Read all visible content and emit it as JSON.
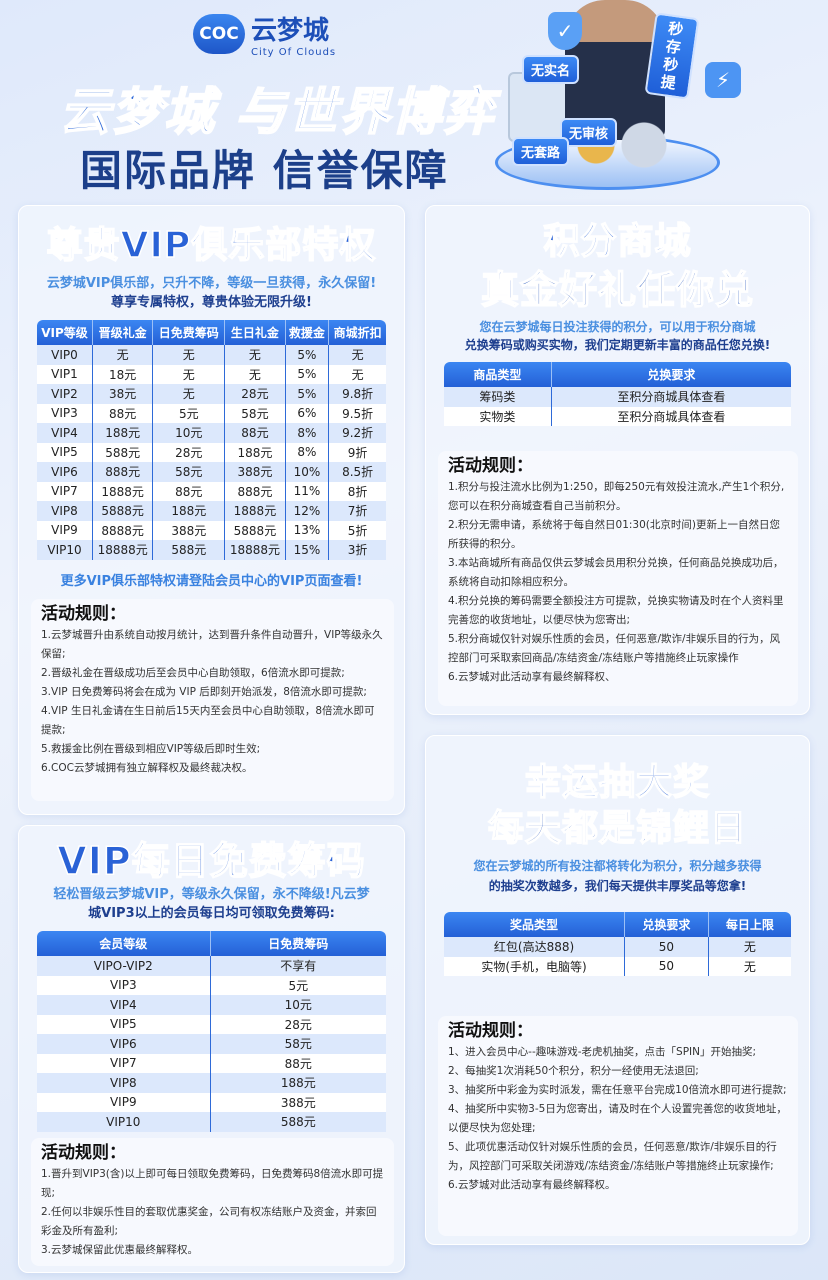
{
  "header": {
    "logo_mark": "COC",
    "logo_name": "云梦城",
    "logo_sub": "City Of Clouds",
    "hero_line1": "云梦城 与世界博弈",
    "hero_line2": "国际品牌 信誉保障",
    "badges": [
      "无实名",
      "无审核",
      "无套路",
      "秒存秒提"
    ]
  },
  "vip_club": {
    "title": "尊贵VIP俱乐部特权",
    "subtitle_1": "云梦城VIP俱乐部，只升不降，等级一旦获得，永久保留!",
    "subtitle_2": "尊享专属特权，尊贵体验无限升级!",
    "columns": [
      "VIP等级",
      "晋级礼金",
      "日免费筹码",
      "生日礼金",
      "救援金",
      "商城折扣"
    ],
    "rows": [
      [
        "VIP0",
        "无",
        "无",
        "无",
        "5%",
        "无"
      ],
      [
        "VIP1",
        "18元",
        "无",
        "无",
        "5%",
        "无"
      ],
      [
        "VIP2",
        "38元",
        "无",
        "28元",
        "5%",
        "9.8折"
      ],
      [
        "VIP3",
        "88元",
        "5元",
        "58元",
        "6%",
        "9.5折"
      ],
      [
        "VIP4",
        "188元",
        "10元",
        "88元",
        "8%",
        "9.2折"
      ],
      [
        "VIP5",
        "588元",
        "28元",
        "188元",
        "8%",
        "9折"
      ],
      [
        "VIP6",
        "888元",
        "58元",
        "388元",
        "10%",
        "8.5折"
      ],
      [
        "VIP7",
        "1888元",
        "88元",
        "888元",
        "11%",
        "8折"
      ],
      [
        "VIP8",
        "5888元",
        "188元",
        "1888元",
        "12%",
        "7折"
      ],
      [
        "VIP9",
        "8888元",
        "388元",
        "5888元",
        "13%",
        "5折"
      ],
      [
        "VIP10",
        "18888元",
        "588元",
        "18888元",
        "15%",
        "3折"
      ]
    ],
    "footnote": "更多VIP俱乐部特权请登陆会员中心的VIP页面查看!",
    "rules_title": "活动规则：",
    "rules": [
      "1.云梦城晋升由系统自动按月统计，达到晋升条件自动晋升，VIP等级永久保留;",
      "2.晋级礼金在晋级成功后至会员中心自助领取，6倍流水即可提款;",
      "3.VIP 日免费筹码将会在成为 VIP 后即刻开始派发，8倍流水即可提款;",
      "4.VIP 生日礼金请在生日前后15天内至会员中心自助领取，8倍流水即可提款;",
      "5.救援金比例在晋级到相应VIP等级后即时生效;",
      "6.COC云梦城拥有独立解释权及最终裁决权。"
    ]
  },
  "daily_chips": {
    "title": "VIP每日免费筹码",
    "subtitle_1": "轻松晋级云梦城VIP，等级永久保留，永不降级!凡云梦",
    "subtitle_2": "城VIP3以上的会员每日均可领取免费筹码:",
    "columns": [
      "会员等级",
      "日免费筹码"
    ],
    "rows": [
      [
        "VIPO-VIP2",
        "不享有"
      ],
      [
        "VIP3",
        "5元"
      ],
      [
        "VIP4",
        "10元"
      ],
      [
        "VIP5",
        "28元"
      ],
      [
        "VIP6",
        "58元"
      ],
      [
        "VIP7",
        "88元"
      ],
      [
        "VIP8",
        "188元"
      ],
      [
        "VIP9",
        "388元"
      ],
      [
        "VIP10",
        "588元"
      ]
    ],
    "rules_title": "活动规则：",
    "rules": [
      "1.晋升到VIP3(含)以上即可每日领取免费筹码，日免费筹码8倍流水即可提现;",
      "2.任何以非娱乐性目的套取优惠奖金，公司有权冻结账户及资金，并索回彩金及所有盈利;",
      "3.云梦城保留此优惠最终解释权。"
    ]
  },
  "points_mall": {
    "title_1": "积分商城",
    "title_2": "真金好礼任你兑",
    "subtitle_1": "您在云梦城每日投注获得的积分，可以用于积分商城",
    "subtitle_2": "兑换筹码或购买实物，我们定期更新丰富的商品任您兑换!",
    "columns": [
      "商品类型",
      "兑换要求"
    ],
    "rows": [
      [
        "筹码类",
        "至积分商城具体查看"
      ],
      [
        "实物类",
        "至积分商城具体查看"
      ]
    ],
    "rules_title": "活动规则：",
    "rules": [
      "1.积分与投注流水比例为1:250，即每250元有效投注流水,产生1个积分,您可以在积分商城查看自己当前积分。",
      "2.积分无需申请，系统将于每自然日01:30(北京时间)更新上一自然日您所获得的积分。",
      "3.本站商城所有商品仅供云梦城会员用积分兑换，任何商品兑换成功后，系统将自动扣除相应积分。",
      "4.积分兑换的筹码需要全额投注方可提款，兑换实物请及时在个人资料里完善您的收货地址，以便尽快为您寄出;",
      "5.积分商城仅针对娱乐性质的会员，任何恶意/欺诈/非娱乐目的行为，风控部门可采取索回商品/冻结资金/冻结账户等措施终止玩家操作",
      "6.云梦城对此活动享有最终解释权、"
    ]
  },
  "lucky_draw": {
    "title_1": "幸运抽大奖",
    "title_2": "每天都是锦鲤日",
    "subtitle_1": "您在云梦城的所有投注都将转化为积分，积分越多获得",
    "subtitle_2": "的抽奖次数越多，我们每天提供丰厚奖品等您拿!",
    "columns": [
      "奖品类型",
      "兑换要求",
      "每日上限"
    ],
    "rows": [
      [
        "红包(高达888)",
        "50",
        "无"
      ],
      [
        "实物(手机，电脑等)",
        "50",
        "无"
      ]
    ],
    "rules_title": "活动规则：",
    "rules": [
      "1、进入会员中心--趣味游戏-老虎机抽奖，点击「SPIN」开始抽奖;",
      "2、每抽奖1次消耗50个积分，积分一经使用无法退回;",
      "3、抽奖所中彩金为实时派发，需在任意平台完成10倍流水即可进行提款;",
      "4、抽奖所中实物3-5日为您寄出，请及时在个人设置完善您的收货地址，以便尽快为您处理;",
      "5、此项优惠活动仅针对娱乐性质的会员，任何恶意/欺诈/非娱乐目的行为，风控部门可采取关闭游戏/冻结资金/冻结账户等措施终止玩家操作;",
      "6.云梦城对此活动享有最终解释权。"
    ]
  },
  "colors": {
    "primary": "#2a62d6",
    "header_cell": "#2460d6",
    "row_alt": "#dce8fc",
    "dark_text": "#1e3f8f"
  }
}
